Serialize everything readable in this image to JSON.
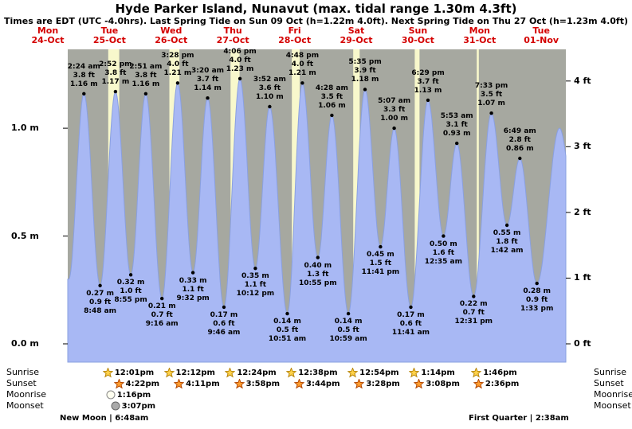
{
  "chart_data": {
    "type": "area",
    "title": "Hyde Parker Island, Nunavut (max. tidal range 1.30m 4.3ft)",
    "subtitle": "Times are EDT (UTC -4.0hrs). Last Spring Tide on Sun 09 Oct (h=1.22m 4.0ft). Next Spring Tide on Thu 27 Oct (h=1.23m 4.0ft)",
    "days": [
      {
        "name": "Mon",
        "date": "24-Oct"
      },
      {
        "name": "Tue",
        "date": "25-Oct"
      },
      {
        "name": "Wed",
        "date": "26-Oct"
      },
      {
        "name": "Thu",
        "date": "27-Oct"
      },
      {
        "name": "Fri",
        "date": "28-Oct"
      },
      {
        "name": "Sat",
        "date": "29-Oct"
      },
      {
        "name": "Sun",
        "date": "30-Oct"
      },
      {
        "name": "Mon",
        "date": "31-Oct"
      },
      {
        "name": "Tue",
        "date": "01-Nov"
      }
    ],
    "y_axis_left": [
      "1.0 m",
      "0.5 m",
      "0.0 m"
    ],
    "y_axis_right": [
      "4 ft",
      "3 ft",
      "2 ft",
      "1 ft",
      "0 ft"
    ],
    "xlim_hours": [
      -4,
      193
    ],
    "ylim_m": [
      -0.085,
      1.366
    ],
    "tide_events": [
      {
        "day": 0,
        "type": "high",
        "time": "2:24 am",
        "ft": "3.8 ft",
        "m": "1.16 m"
      },
      {
        "day": 0,
        "type": "low",
        "time": "8:48 am",
        "ft": "0.9 ft",
        "m": "0.27 m"
      },
      {
        "day": 0,
        "type": "high",
        "time": "2:52 pm",
        "ft": "3.8 ft",
        "m": "1.17 m"
      },
      {
        "day": 0,
        "type": "low",
        "time": "8:55 pm",
        "ft": "1.0 ft",
        "m": "0.32 m"
      },
      {
        "day": 1,
        "type": "high",
        "time": "2:51 am",
        "ft": "3.8 ft",
        "m": "1.16 m"
      },
      {
        "day": 1,
        "type": "low",
        "time": "9:16 am",
        "ft": "0.7 ft",
        "m": "0.21 m"
      },
      {
        "day": 1,
        "type": "high",
        "time": "3:28 pm",
        "ft": "4.0 ft",
        "m": "1.21 m"
      },
      {
        "day": 1,
        "type": "low",
        "time": "9:32 pm",
        "ft": "1.1 ft",
        "m": "0.33 m"
      },
      {
        "day": 2,
        "type": "high",
        "time": "3:20 am",
        "ft": "3.7 ft",
        "m": "1.14 m"
      },
      {
        "day": 2,
        "type": "low",
        "time": "9:46 am",
        "ft": "0.6 ft",
        "m": "0.17 m"
      },
      {
        "day": 2,
        "type": "high",
        "time": "4:06 pm",
        "ft": "4.0 ft",
        "m": "1.23 m"
      },
      {
        "day": 2,
        "type": "low",
        "time": "10:12 pm",
        "ft": "1.1 ft",
        "m": "0.35 m"
      },
      {
        "day": 3,
        "type": "high",
        "time": "3:52 am",
        "ft": "3.6 ft",
        "m": "1.10 m"
      },
      {
        "day": 3,
        "type": "low",
        "time": "10:51 am",
        "ft": "0.5 ft",
        "m": "0.14 m"
      },
      {
        "day": 3,
        "type": "high",
        "time": "4:48 pm",
        "ft": "4.0 ft",
        "m": "1.21 m"
      },
      {
        "day": 3,
        "type": "low",
        "time": "10:55 pm",
        "ft": "1.3 ft",
        "m": "0.40 m"
      },
      {
        "day": 4,
        "type": "high",
        "time": "4:28 am",
        "ft": "3.5 ft",
        "m": "1.06 m"
      },
      {
        "day": 4,
        "type": "low",
        "time": "10:59 am",
        "ft": "0.5 ft",
        "m": "0.14 m"
      },
      {
        "day": 4,
        "type": "high",
        "time": "5:35 pm",
        "ft": "3.9 ft",
        "m": "1.18 m"
      },
      {
        "day": 4,
        "type": "low",
        "time": "11:41 pm",
        "ft": "1.5 ft",
        "m": "0.45 m"
      },
      {
        "day": 5,
        "type": "high",
        "time": "5:07 am",
        "ft": "3.3 ft",
        "m": "1.00 m"
      },
      {
        "day": 5,
        "type": "low",
        "time": "11:41 am",
        "ft": "0.6 ft",
        "m": "0.17 m"
      },
      {
        "day": 5,
        "type": "high",
        "time": "6:29 pm",
        "ft": "3.7 ft",
        "m": "1.13 m"
      },
      {
        "day": 6,
        "type": "low",
        "time": "12:35 am",
        "ft": "1.6 ft",
        "m": "0.50 m"
      },
      {
        "day": 6,
        "type": "high",
        "time": "5:53 am",
        "ft": "3.1 ft",
        "m": "0.93 m"
      },
      {
        "day": 6,
        "type": "low",
        "time": "12:31 pm",
        "ft": "0.7 ft",
        "m": "0.22 m"
      },
      {
        "day": 6,
        "type": "high",
        "time": "7:33 pm",
        "ft": "3.5 ft",
        "m": "1.07 m"
      },
      {
        "day": 7,
        "type": "low",
        "time": "1:42 am",
        "ft": "1.8 ft",
        "m": "0.55 m"
      },
      {
        "day": 7,
        "type": "high",
        "time": "6:49 am",
        "ft": "2.8 ft",
        "m": "0.86 m"
      },
      {
        "day": 7,
        "type": "low",
        "time": "1:33 pm",
        "ft": "0.9 ft",
        "m": "0.28 m"
      }
    ],
    "estimated_offscreen_extremes": [
      {
        "t": -3.6,
        "h": 0.3
      },
      {
        "t": 190.5,
        "h": 1.0
      },
      {
        "t": 197.0,
        "h": 0.6
      }
    ],
    "sun": [
      {
        "day": 0,
        "rise": "12:01pm",
        "set": "4:22pm"
      },
      {
        "day": 1,
        "rise": "12:12pm",
        "set": "4:11pm"
      },
      {
        "day": 2,
        "rise": "12:24pm",
        "set": "3:58pm"
      },
      {
        "day": 3,
        "rise": "12:38pm",
        "set": "3:44pm"
      },
      {
        "day": 4,
        "rise": "12:54pm",
        "set": "3:28pm"
      },
      {
        "day": 5,
        "rise": "1:14pm",
        "set": "3:08pm"
      },
      {
        "day": 6,
        "rise": "1:46pm",
        "set": "2:36pm"
      }
    ],
    "moon": {
      "rise": {
        "day": 0,
        "time": "1:16pm"
      },
      "set": {
        "day": 0,
        "time": "3:07pm"
      }
    },
    "side_labels": [
      "Sunrise",
      "Sunset",
      "Moonrise",
      "Moonset"
    ],
    "footer_left": "New Moon | 6:48am",
    "footer_right": "First Quarter | 2:38am",
    "colors": {
      "plot_bg": "#a6a8a0",
      "tide_fill": "#a8b8f4",
      "tide_stroke": "#8aa0e0",
      "daylight": "#f8f8cc",
      "day_label": "#d40000",
      "sunrise_star": "#ffd24a",
      "sunrise_star_edge": "#b8860b",
      "sunset_star": "#ff9d2e",
      "sunset_star_edge": "#b34700",
      "moonrise_fill": "#fffff0",
      "moonrise_edge": "#888888",
      "moonset_fill": "#aaaaaa",
      "moonset_edge": "#666666"
    }
  }
}
